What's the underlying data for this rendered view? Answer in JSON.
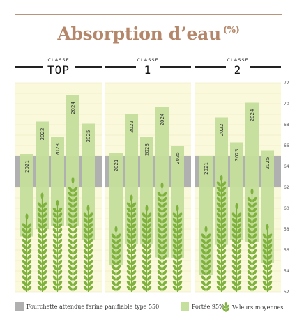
{
  "title": {
    "main": "Absorption d’eau",
    "unit": "(%)"
  },
  "legend": {
    "gray_label": "Fourchette attendue farine panifiable type 550",
    "range_label": "Portée 95%",
    "mean_label": "Valeurs moyennes"
  },
  "colors": {
    "title": "#b5876a",
    "panel_bg": "#fbf9dc",
    "gridline": "#ebe7b9",
    "gray_band": "#b0b0b0",
    "range_bar": "#c5df9c",
    "wheat": "#7fb13d"
  },
  "chart_data": {
    "type": "bar",
    "ylim": [
      52,
      72
    ],
    "yticks": [
      52,
      54,
      56,
      58,
      60,
      62,
      64,
      66,
      68,
      70,
      72
    ],
    "expected_range": [
      62,
      65
    ],
    "categories": [
      "2021",
      "2022",
      "2023",
      "2024",
      "2025"
    ],
    "panels": [
      {
        "class_label": "CLASSE",
        "class_name": "TOP",
        "bars": [
          {
            "year": "2021",
            "low": 57.3,
            "high": 65.2,
            "mean": 59.5
          },
          {
            "year": "2022",
            "low": 58.0,
            "high": 68.3,
            "mean": 61.5
          },
          {
            "year": "2023",
            "low": 58.3,
            "high": 66.8,
            "mean": 60.8
          },
          {
            "year": "2024",
            "low": 58.3,
            "high": 70.8,
            "mean": 63.0
          },
          {
            "year": "2025",
            "low": 57.0,
            "high": 68.1,
            "mean": 60.3
          }
        ]
      },
      {
        "class_label": "CLASSE",
        "class_name": "1",
        "bars": [
          {
            "year": "2021",
            "low": 54.6,
            "high": 65.3,
            "mean": 58.3
          },
          {
            "year": "2022",
            "low": 56.6,
            "high": 69.0,
            "mean": 61.3
          },
          {
            "year": "2023",
            "low": 56.6,
            "high": 66.8,
            "mean": 60.3
          },
          {
            "year": "2024",
            "low": 55.3,
            "high": 69.7,
            "mean": 62.5
          },
          {
            "year": "2025",
            "low": 55.2,
            "high": 66.0,
            "mean": 60.3
          }
        ]
      },
      {
        "class_label": "CLASSE",
        "class_name": "2",
        "bars": [
          {
            "year": "2021",
            "low": 53.6,
            "high": 65.0,
            "mean": 58.3
          },
          {
            "year": "2022",
            "low": 56.5,
            "high": 68.7,
            "mean": 63.2
          },
          {
            "year": "2023",
            "low": 57.0,
            "high": 66.3,
            "mean": 60.5
          },
          {
            "year": "2024",
            "low": 56.8,
            "high": 70.1,
            "mean": 61.9
          },
          {
            "year": "2025",
            "low": 54.8,
            "high": 65.5,
            "mean": 58.5
          }
        ]
      }
    ]
  }
}
